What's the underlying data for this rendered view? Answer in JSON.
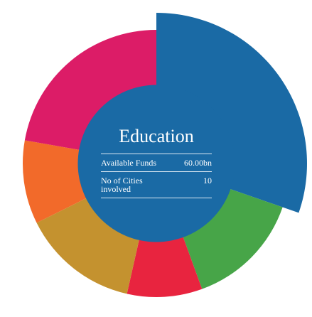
{
  "chart_data": {
    "type": "donut",
    "categories": [
      "Education",
      null,
      null,
      null,
      null,
      null
    ],
    "values": [
      30,
      14,
      9,
      14,
      10,
      22
    ],
    "colors": [
      "#1a6aa5",
      "#47a548",
      "#e8243f",
      "#c4922f",
      "#f26a2a",
      "#dc1c67"
    ],
    "selected": 0,
    "center": {
      "rows": [
        {
          "label": "Available Funds",
          "value": "60.00bn"
        },
        {
          "label": "No of Cities involved",
          "value": "10"
        }
      ]
    }
  }
}
